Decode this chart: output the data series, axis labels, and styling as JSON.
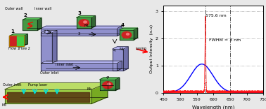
{
  "plot_bg": "#ffffff",
  "fig_bg": "#e8e8e8",
  "peak_wavelength": 575.6,
  "fwhm": 3,
  "xlim": [
    450,
    750
  ],
  "ylim": [
    0,
    3.2
  ],
  "yticks": [
    0,
    1,
    2,
    3
  ],
  "xlabel": "Wavelength (nm)",
  "ylabel": "Output Intensity  (a.u)",
  "annotation_peak": "575.6 nm",
  "annotation_fwhm": "FWHM = 3 nm",
  "grid_color": "#888888",
  "red_color": "#ff0000",
  "blue_color": "#0000ff",
  "dashed_line_color": "#555555",
  "channel_color": "#9999dd",
  "green_box_color": "#44aa44",
  "left_bg": "#cccccc"
}
